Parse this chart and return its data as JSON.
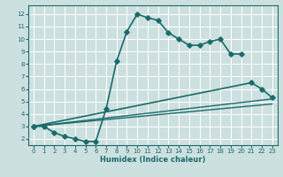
{
  "xlabel": "Humidex (Indice chaleur)",
  "bg_color": "#cde0e0",
  "grid_color": "#ffffff",
  "line_color": "#1a6b6b",
  "xlim": [
    -0.5,
    23.5
  ],
  "ylim": [
    1.5,
    12.7
  ],
  "xticks": [
    0,
    1,
    2,
    3,
    4,
    5,
    6,
    7,
    8,
    9,
    10,
    11,
    12,
    13,
    14,
    15,
    16,
    17,
    18,
    19,
    20,
    21,
    22,
    23
  ],
  "yticks": [
    2,
    3,
    4,
    5,
    6,
    7,
    8,
    9,
    10,
    11,
    12
  ],
  "line1_x": [
    0,
    1,
    2,
    3,
    4,
    5,
    6,
    7,
    8,
    9,
    10,
    11,
    12,
    13,
    14,
    15,
    16,
    17,
    18,
    19,
    20
  ],
  "line1_y": [
    3.0,
    3.0,
    2.5,
    2.2,
    2.0,
    1.8,
    1.8,
    4.4,
    8.2,
    10.6,
    12.0,
    11.7,
    11.5,
    10.5,
    10.0,
    9.5,
    9.5,
    9.8,
    10.0,
    8.8,
    8.8
  ],
  "line2_x": [
    0,
    21,
    22,
    23
  ],
  "line2_y": [
    3.0,
    6.5,
    6.0,
    5.3
  ],
  "line3_x": [
    0,
    23
  ],
  "line3_y": [
    3.0,
    5.2
  ],
  "line4_x": [
    0,
    23
  ],
  "line4_y": [
    3.0,
    4.8
  ]
}
